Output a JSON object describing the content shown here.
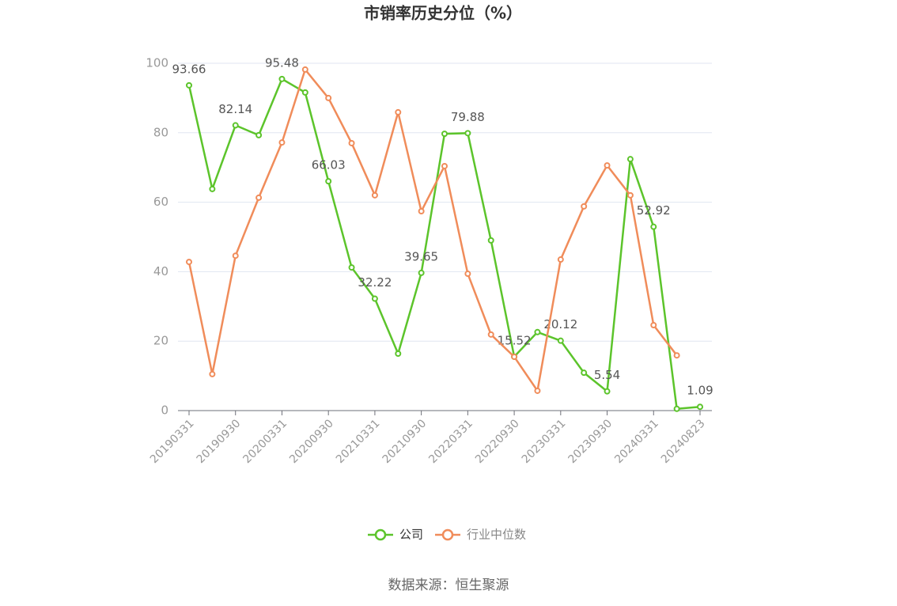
{
  "chart_data": {
    "type": "line",
    "title": "市销率历史分位（%）",
    "categories": [
      "20190331",
      null,
      "20190930",
      null,
      "20200331",
      null,
      "20200930",
      null,
      "20210331",
      null,
      "20210930",
      null,
      "20220331",
      null,
      "20220930",
      null,
      "20230331",
      null,
      "20230930",
      null,
      "20240331",
      null,
      "20240823"
    ],
    "series": [
      {
        "name": "公司",
        "color": "#5cc42b",
        "values": [
          93.66,
          63.8,
          82.14,
          79.3,
          95.48,
          91.6,
          66.03,
          41.2,
          32.22,
          16.4,
          39.65,
          79.7,
          79.88,
          49.0,
          15.52,
          22.6,
          20.12,
          10.9,
          5.54,
          72.4,
          52.92,
          0.5,
          1.09
        ],
        "value_labels": [
          "93.66",
          null,
          "82.14",
          null,
          "95.48",
          null,
          "66.03",
          null,
          "32.22",
          null,
          "39.65",
          null,
          "79.88",
          null,
          "15.52",
          null,
          "20.12",
          null,
          "5.54",
          null,
          "52.92",
          null,
          "1.09"
        ]
      },
      {
        "name": "行业中位数",
        "color": "#f08c5a",
        "values": [
          42.8,
          10.5,
          44.6,
          61.3,
          77.2,
          98.2,
          90.0,
          77.0,
          62.0,
          85.9,
          57.4,
          70.4,
          39.4,
          21.9,
          15.5,
          5.7,
          43.5,
          58.8,
          70.6,
          62.0,
          24.6,
          15.9,
          null
        ]
      }
    ],
    "ylim": [
      0,
      100
    ],
    "yticks": [
      0,
      20,
      40,
      60,
      80,
      100
    ],
    "grid": true,
    "legend": "bottom",
    "source": "数据来源：恒生聚源"
  }
}
